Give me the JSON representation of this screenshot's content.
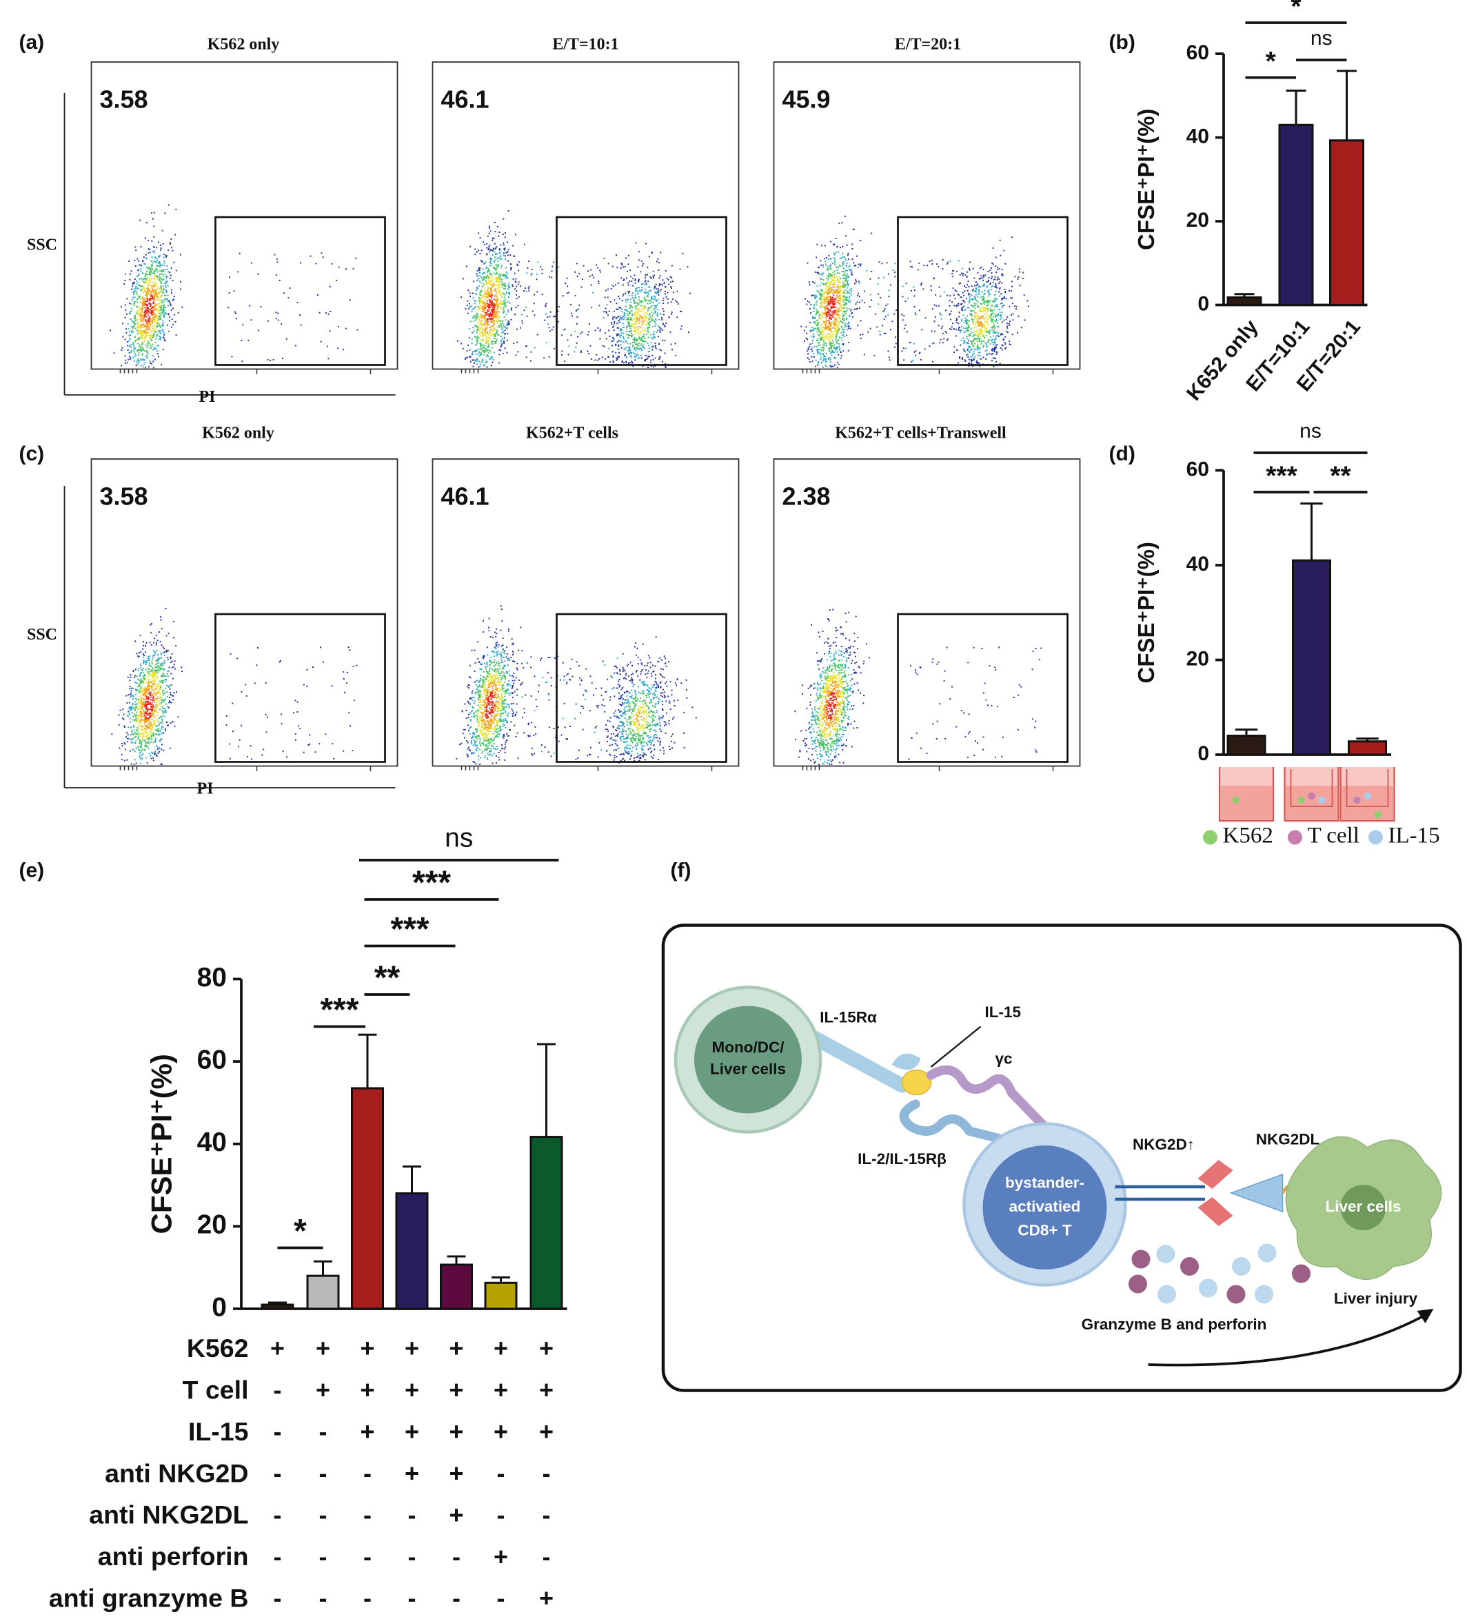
{
  "panel_labels": [
    "(a)",
    "(b)",
    "(c)",
    "(d)",
    "(e)",
    "(f)"
  ],
  "flow_panels": [
    {
      "y_axis": "SSC",
      "x_axis": "PI",
      "plots": [
        {
          "title": "K562 only",
          "gate": 3.58
        },
        {
          "title": "E/T=10:1",
          "gate": 46.1
        },
        {
          "title": "E/T=20:1",
          "gate": 45.9
        }
      ]
    },
    {
      "y_axis": "SSC",
      "x_axis": "PI",
      "plots": [
        {
          "title": "K562 only",
          "gate": 3.58
        },
        {
          "title": "K562+T cells",
          "gate": 46.1
        },
        {
          "title": "K562+T cells+Transwell",
          "gate": 2.38
        }
      ]
    }
  ],
  "chart_data": [
    {
      "type": "bar",
      "categories": [
        "K652 only",
        "E/T=10:1",
        "E/T=20:1"
      ],
      "values": [
        1.8,
        43,
        39.3
      ],
      "errors": [
        0.8,
        8.2,
        16.6
      ],
      "colors": [
        "#2b1a14",
        "#2a1d5e",
        "#a61e1b"
      ],
      "ylim": [
        0,
        60
      ],
      "yticks": [
        0,
        20,
        40,
        60
      ],
      "y_label": "CFSE⁺PI⁺(%)",
      "significance": [
        "*",
        "*",
        "ns"
      ]
    },
    {
      "type": "bar",
      "values": [
        4,
        41,
        2.8
      ],
      "errors": [
        1.3,
        12,
        0.6
      ],
      "colors": [
        "#2b1a14",
        "#2a1d5e",
        "#a61e1b"
      ],
      "ylim": [
        0,
        60
      ],
      "yticks": [
        0,
        20,
        40,
        60
      ],
      "y_label": "CFSE⁺PI⁺(%)",
      "significance": [
        "ns",
        "***",
        "**"
      ],
      "legend": [
        {
          "name": "K562",
          "color": "#8fcf6e"
        },
        {
          "name": "T cell",
          "color": "#c77fb0"
        },
        {
          "name": "IL-15",
          "color": "#a9cdea"
        }
      ]
    },
    {
      "type": "bar",
      "values": [
        1,
        8,
        53.5,
        28,
        10.7,
        6.3,
        41.7
      ],
      "errors": [
        0.5,
        3.5,
        13,
        6.5,
        2,
        1.3,
        22.5
      ],
      "colors": [
        "#2b1a14",
        "#b9b9b9",
        "#a61e1b",
        "#2a1d5e",
        "#5e0a3f",
        "#b5a300",
        "#0b5a2e"
      ],
      "ylim": [
        0,
        80
      ],
      "yticks": [
        0,
        20,
        40,
        60,
        80
      ],
      "y_label": "CFSE⁺PI⁺(%)",
      "significance": [
        "*",
        "***",
        "**",
        "***",
        "***",
        "ns"
      ],
      "conditions": [
        {
          "name": "K562",
          "signs": [
            "+",
            "+",
            "+",
            "+",
            "+",
            "+",
            "+"
          ]
        },
        {
          "name": "T cell",
          "signs": [
            "-",
            "+",
            "+",
            "+",
            "+",
            "+",
            "+"
          ]
        },
        {
          "name": "IL-15",
          "signs": [
            "-",
            "-",
            "+",
            "+",
            "+",
            "+",
            "+"
          ]
        },
        {
          "name": "anti NKG2D",
          "signs": [
            "-",
            "-",
            "-",
            "+",
            "+",
            "-",
            "-"
          ]
        },
        {
          "name": "anti NKG2DL",
          "signs": [
            "-",
            "-",
            "-",
            "-",
            "+",
            "-",
            "-"
          ]
        },
        {
          "name": "anti perforin",
          "signs": [
            "-",
            "-",
            "-",
            "-",
            "-",
            "+",
            "-"
          ]
        },
        {
          "name": "anti granzyme B",
          "signs": [
            "-",
            "-",
            "-",
            "-",
            "-",
            "-",
            "+"
          ]
        }
      ]
    }
  ],
  "diagram": {
    "left_cell": [
      "Mono/DC/",
      "Liver cells"
    ],
    "il15ra": "IL-15Rα",
    "il15": "IL-15",
    "gc": "γc",
    "il2r": "IL-2/IL-15Rβ",
    "t_cell": [
      "bystander-",
      "activatied",
      "CD8+ T"
    ],
    "nkg2d": "NKG2D↑",
    "nkg2dl": "NKG2DL",
    "liver_cell": "Liver cells",
    "granzyme": "Granzyme B and  perforin",
    "injury": "Liver injury"
  }
}
